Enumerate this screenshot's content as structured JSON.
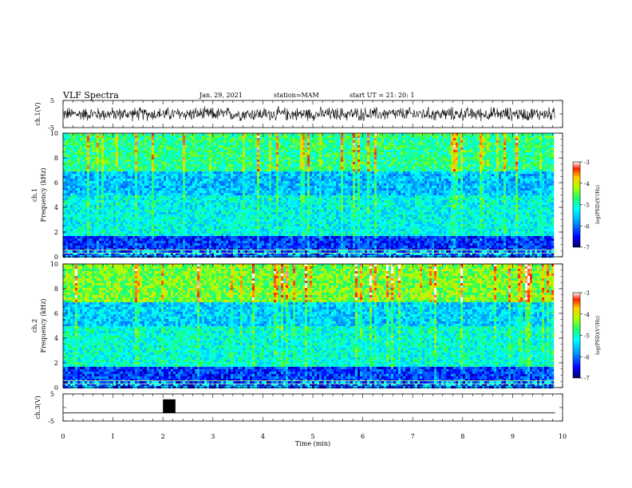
{
  "header": {
    "title": "VLF Spectra",
    "date": "Jan. 29, 2021",
    "station": "station=MAM",
    "start": "start UT =  21: 20: 1"
  },
  "chart_data": [
    {
      "type": "line",
      "panel": "ch1-waveform",
      "ylabel": "ch.1(V)",
      "yticks": [
        "5",
        "-5"
      ],
      "ylim": [
        -5,
        5
      ],
      "x_range_min": [
        0,
        9.85
      ],
      "description_value_level": 0,
      "amplitude_approx": 2
    },
    {
      "type": "heatmap",
      "panel": "ch1-spectrogram",
      "ylabel_channel": "ch.1",
      "ylabel": "Frequency (kHz)",
      "yticks": [
        "0",
        "2",
        "4",
        "6",
        "8",
        "10"
      ],
      "ylim": [
        0,
        10
      ],
      "xlim": [
        0,
        10
      ],
      "colorbar": {
        "label": "log(PSD)(V²/Hz)",
        "ticks": [
          "-3",
          "-4",
          "-5",
          "-6",
          "-7"
        ],
        "range": [
          -7,
          -3
        ]
      },
      "dominant_bands": [
        {
          "freq_khz": [
            0,
            1.8
          ],
          "level": -6.3
        },
        {
          "freq_khz": [
            1.8,
            5
          ],
          "level": -5.2
        },
        {
          "freq_khz": [
            5,
            7
          ],
          "level": -5.6
        },
        {
          "freq_khz": [
            7,
            10
          ],
          "level": -4.8
        }
      ]
    },
    {
      "type": "heatmap",
      "panel": "ch2-spectrogram",
      "ylabel_channel": "ch.2",
      "ylabel": "Frequency (kHz)",
      "yticks": [
        "0",
        "2",
        "4",
        "6",
        "8",
        "10"
      ],
      "ylim": [
        0,
        10
      ],
      "xlim": [
        0,
        10
      ],
      "colorbar": {
        "label": "log(PSD)(V²/Hz)",
        "ticks": [
          "-3",
          "-4",
          "-5",
          "-6",
          "-7"
        ],
        "range": [
          -7,
          -3
        ]
      },
      "dominant_bands": [
        {
          "freq_khz": [
            0,
            1.8
          ],
          "level": -6.3
        },
        {
          "freq_khz": [
            1.8,
            5
          ],
          "level": -5.1
        },
        {
          "freq_khz": [
            5,
            7
          ],
          "level": -5.5
        },
        {
          "freq_khz": [
            7,
            10
          ],
          "level": -4.4
        }
      ]
    },
    {
      "type": "line",
      "panel": "ch3-waveform",
      "ylabel": "ch.3(V)",
      "yticks": [
        "5",
        "-5"
      ],
      "ylim": [
        -5,
        5
      ],
      "baseline_v": -2,
      "pulse": {
        "x_min": [
          2.0,
          2.25
        ],
        "y_v": [
          -2,
          3
        ]
      }
    }
  ],
  "x_axis": {
    "label": "Time (min)",
    "ticks": [
      "0",
      "1",
      "2",
      "3",
      "4",
      "5",
      "6",
      "7",
      "8",
      "9",
      "10"
    ],
    "xlim": [
      0,
      10
    ]
  },
  "colors": {
    "axis": "#000000",
    "background": "#ffffff"
  }
}
